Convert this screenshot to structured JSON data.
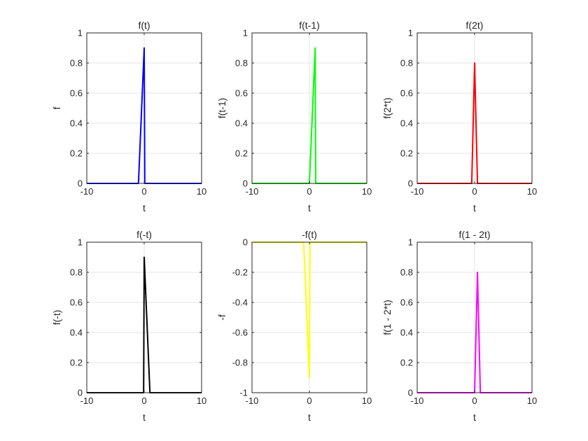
{
  "chart_data": [
    {
      "type": "line",
      "title": "f(t)",
      "xlabel": "t",
      "ylabel": "f",
      "color": "#0000ff",
      "xlim": [
        -10,
        10
      ],
      "ylim": [
        0,
        1
      ],
      "xticks": [
        -10,
        0,
        10
      ],
      "yticks": [
        0,
        0.2,
        0.4,
        0.6,
        0.8,
        1
      ],
      "ytick_labels": [
        "0",
        "0.2",
        "0.4",
        "0.6",
        "0.8",
        "1"
      ],
      "grid": true,
      "x": [
        -10,
        -1,
        0,
        0.1,
        10
      ],
      "y": [
        0,
        0,
        0.9,
        0,
        0
      ]
    },
    {
      "type": "line",
      "title": "f(t-1)",
      "xlabel": "t",
      "ylabel": "f(t-1)",
      "color": "#00ff00",
      "xlim": [
        -10,
        10
      ],
      "ylim": [
        0,
        1
      ],
      "xticks": [
        -10,
        0,
        10
      ],
      "yticks": [
        0,
        0.2,
        0.4,
        0.6,
        0.8,
        1
      ],
      "ytick_labels": [
        "0",
        "0.2",
        "0.4",
        "0.6",
        "0.8",
        "1"
      ],
      "grid": true,
      "x": [
        -10,
        0,
        1,
        1.1,
        10
      ],
      "y": [
        0,
        0,
        0.9,
        0,
        0
      ]
    },
    {
      "type": "line",
      "title": "f(2t)",
      "xlabel": "t",
      "ylabel": "f(2*t)",
      "color": "#ff0000",
      "xlim": [
        -10,
        10
      ],
      "ylim": [
        0,
        1
      ],
      "xticks": [
        -10,
        0,
        10
      ],
      "yticks": [
        0,
        0.2,
        0.4,
        0.6,
        0.8,
        1
      ],
      "ytick_labels": [
        "0",
        "0.2",
        "0.4",
        "0.6",
        "0.8",
        "1"
      ],
      "grid": true,
      "x": [
        -10,
        -0.5,
        0,
        0.5,
        10
      ],
      "y": [
        0,
        0,
        0.8,
        0,
        0
      ]
    },
    {
      "type": "line",
      "title": "f(-t)",
      "xlabel": "t",
      "ylabel": "f(-t)",
      "color": "#000000",
      "xlim": [
        -10,
        10
      ],
      "ylim": [
        0,
        1
      ],
      "xticks": [
        -10,
        0,
        10
      ],
      "yticks": [
        0,
        0.2,
        0.4,
        0.6,
        0.8,
        1
      ],
      "ytick_labels": [
        "0",
        "0.2",
        "0.4",
        "0.6",
        "0.8",
        "1"
      ],
      "grid": true,
      "x": [
        -10,
        -0.1,
        0,
        1,
        10
      ],
      "y": [
        0,
        0,
        0.9,
        0,
        0
      ]
    },
    {
      "type": "line",
      "title": "-f(t)",
      "xlabel": "t",
      "ylabel": "-f",
      "color": "#ffff00",
      "xlim": [
        -10,
        10
      ],
      "ylim": [
        -1,
        0
      ],
      "xticks": [
        -10,
        0,
        10
      ],
      "yticks": [
        -1,
        -0.8,
        -0.6,
        -0.4,
        -0.2,
        0
      ],
      "ytick_labels": [
        "-1",
        "-0.8",
        "-0.6",
        "-0.4",
        "-0.2",
        "0"
      ],
      "grid": true,
      "x": [
        -10,
        -1,
        0,
        0.1,
        10
      ],
      "y": [
        0,
        0,
        -0.9,
        0,
        0
      ]
    },
    {
      "type": "line",
      "title": "f(1 - 2t)",
      "xlabel": "t",
      "ylabel": "f(1 - 2*t)",
      "color": "#ff00ff",
      "xlim": [
        -10,
        10
      ],
      "ylim": [
        0,
        1
      ],
      "xticks": [
        -10,
        0,
        10
      ],
      "yticks": [
        0,
        0.2,
        0.4,
        0.6,
        0.8,
        1
      ],
      "ytick_labels": [
        "0",
        "0.2",
        "0.4",
        "0.6",
        "0.8",
        "1"
      ],
      "grid": true,
      "x": [
        -10,
        0,
        0.5,
        1,
        10
      ],
      "y": [
        0,
        0,
        0.8,
        0,
        0
      ]
    }
  ]
}
